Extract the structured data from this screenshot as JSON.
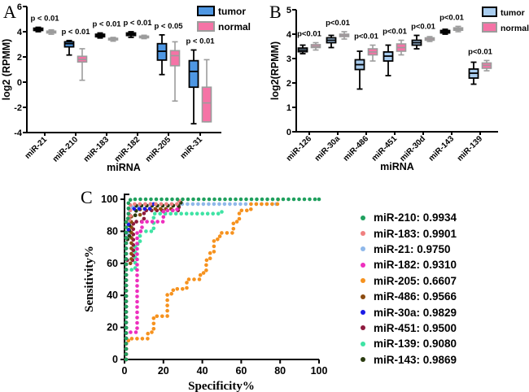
{
  "chart_data": [
    {
      "type": "boxplot",
      "letter": "A",
      "ylabel": "log2 (RPMM)",
      "xlabel": "miRNA",
      "ylim": [
        -4,
        6
      ],
      "yticks": [
        6,
        4,
        2,
        0,
        -2,
        -4
      ],
      "legend": [
        "tumor",
        "normal"
      ],
      "categories": [
        "miR-21",
        "miR-210",
        "miR-183",
        "miR-182",
        "miR-205",
        "miR-31"
      ],
      "pvalues": [
        "p < 0.01",
        "p < 0.01",
        "p < 0.01",
        "p < 0.01",
        "p < 0.05",
        "p < 0.01"
      ],
      "tumor": [
        [
          4.0,
          4.1,
          4.2,
          4.28,
          4.35
        ],
        [
          2.15,
          2.8,
          3.05,
          3.2,
          3.3
        ],
        [
          3.5,
          3.6,
          3.7,
          3.8,
          3.9
        ],
        [
          3.55,
          3.7,
          3.8,
          3.9,
          4.0
        ],
        [
          0.6,
          1.75,
          2.45,
          3.05,
          3.75
        ],
        [
          -3.3,
          -0.4,
          0.85,
          1.7,
          2.55
        ]
      ],
      "normal": [
        [
          3.8,
          3.9,
          3.97,
          4.05,
          4.15
        ],
        [
          0.15,
          1.6,
          1.8,
          2.05,
          2.65
        ],
        [
          3.25,
          3.35,
          3.4,
          3.48,
          3.55
        ],
        [
          3.45,
          3.52,
          3.58,
          3.65,
          3.72
        ],
        [
          -1.5,
          1.3,
          2.1,
          2.5,
          3.2
        ],
        [
          -3.15,
          -3.15,
          -1.65,
          -0.4,
          1.78
        ]
      ]
    },
    {
      "type": "boxplot",
      "letter": "B",
      "ylabel": "log2(RPMM)",
      "xlabel": "miRNA",
      "ylim": [
        0,
        5
      ],
      "yticks": [
        5,
        4,
        3,
        2,
        1,
        0
      ],
      "legend": [
        "tumor",
        "normal"
      ],
      "categories": [
        "miR-126",
        "miR-30a",
        "miR-486",
        "miR-451",
        "miR-30d",
        "miR-143",
        "miR-139"
      ],
      "pvalues": [
        "p<0.01",
        "p<0.01",
        "p<0.01",
        "p<0.01",
        "p<0.01",
        "p<0.01",
        "p<0.01"
      ],
      "tumor": [
        [
          3.2,
          3.28,
          3.35,
          3.43,
          3.55
        ],
        [
          3.45,
          3.65,
          3.75,
          3.85,
          3.95
        ],
        [
          1.75,
          2.55,
          2.75,
          2.95,
          3.3
        ],
        [
          2.3,
          2.9,
          3.1,
          3.27,
          3.55
        ],
        [
          3.4,
          3.55,
          3.65,
          3.75,
          3.95
        ],
        [
          4.0,
          4.05,
          4.1,
          4.15,
          4.2
        ],
        [
          1.95,
          2.2,
          2.4,
          2.57,
          2.85
        ]
      ],
      "normal": [
        [
          3.35,
          3.45,
          3.5,
          3.57,
          3.65
        ],
        [
          3.8,
          3.9,
          3.95,
          4.0,
          4.1
        ],
        [
          2.9,
          3.15,
          3.27,
          3.4,
          3.55
        ],
        [
          3.15,
          3.3,
          3.45,
          3.6,
          3.75
        ],
        [
          3.7,
          3.75,
          3.8,
          3.85,
          3.9
        ],
        [
          4.1,
          4.16,
          4.21,
          4.26,
          4.32
        ],
        [
          2.5,
          2.6,
          2.72,
          2.82,
          2.92
        ]
      ]
    },
    {
      "type": "scatter",
      "letter": "C",
      "xlabel": "Specificity%",
      "ylabel": "Sensitivity%",
      "xlim": [
        0,
        100
      ],
      "ylim": [
        0,
        100
      ],
      "xticks": [
        0,
        20,
        40,
        60,
        80,
        100
      ],
      "yticks": [
        0,
        20,
        40,
        60,
        80,
        100
      ],
      "series": [
        {
          "name": "miR-210",
          "auc": "0.9934",
          "color": "#1FA05E",
          "knots": [
            [
              0,
              0
            ],
            [
              0,
              88
            ],
            [
              2,
              88
            ],
            [
              2,
              98
            ],
            [
              3,
              98
            ],
            [
              3,
              100
            ],
            [
              100,
              100
            ]
          ]
        },
        {
          "name": "miR-183",
          "auc": "0.9901",
          "color": "#F08080",
          "knots": [
            [
              0,
              0
            ],
            [
              0,
              87
            ],
            [
              3,
              87
            ],
            [
              3,
              97
            ],
            [
              28,
              97
            ],
            [
              28,
              100
            ]
          ]
        },
        {
          "name": "miR-21",
          "auc": "0.9750",
          "color": "#8FB8EA",
          "knots": [
            [
              0,
              0
            ],
            [
              0,
              78
            ],
            [
              2,
              78
            ],
            [
              2,
              95
            ],
            [
              8,
              95
            ],
            [
              8,
              97
            ],
            [
              78,
              97
            ]
          ]
        },
        {
          "name": "miR-182",
          "auc": "0.9310",
          "color": "#EE2FBE",
          "knots": [
            [
              0,
              0
            ],
            [
              0,
              17
            ],
            [
              6.5,
              17
            ],
            [
              6.5,
              80
            ],
            [
              9,
              80
            ],
            [
              9,
              86
            ],
            [
              20,
              86
            ],
            [
              20,
              93
            ],
            [
              27,
              93
            ],
            [
              27,
              95
            ]
          ]
        },
        {
          "name": "miR-205",
          "auc": "0.6607",
          "color": "#F6921E",
          "knots": [
            [
              0,
              0
            ],
            [
              0,
              11
            ],
            [
              2,
              11
            ],
            [
              2,
              13
            ],
            [
              12,
              13
            ],
            [
              12,
              17
            ],
            [
              15,
              17
            ],
            [
              15,
              27
            ],
            [
              22,
              27
            ],
            [
              22,
              41
            ],
            [
              25,
              41
            ],
            [
              25,
              44
            ],
            [
              32,
              44
            ],
            [
              32,
              50
            ],
            [
              39,
              50
            ],
            [
              39,
              54
            ],
            [
              42,
              54
            ],
            [
              42,
              62
            ],
            [
              44,
              62
            ],
            [
              44,
              67
            ],
            [
              46,
              67
            ],
            [
              46,
              75
            ],
            [
              49,
              75
            ],
            [
              49,
              79
            ],
            [
              56,
              79
            ],
            [
              56,
              86
            ],
            [
              59,
              86
            ],
            [
              59,
              93
            ],
            [
              65,
              93
            ],
            [
              65,
              97
            ],
            [
              79,
              97
            ],
            [
              79,
              100
            ]
          ]
        },
        {
          "name": "miR-486",
          "auc": "0.9566",
          "color": "#8C4B10",
          "knots": [
            [
              0,
              0
            ],
            [
              0,
              60
            ],
            [
              3.5,
              60
            ],
            [
              3.5,
              90
            ],
            [
              8,
              90
            ],
            [
              8,
              94
            ],
            [
              25,
              94
            ],
            [
              25,
              97
            ]
          ]
        },
        {
          "name": "miR-30a",
          "auc": "0.9829",
          "color": "#1A1AE6",
          "knots": [
            [
              0,
              0
            ],
            [
              0,
              80
            ],
            [
              2,
              80
            ],
            [
              2,
              94
            ],
            [
              13,
              94
            ],
            [
              13,
              97
            ],
            [
              15,
              97
            ]
          ]
        },
        {
          "name": "miR-451",
          "auc": "0.9500",
          "color": "#8E1A3E",
          "knots": [
            [
              0,
              0
            ],
            [
              0,
              62
            ],
            [
              4.5,
              62
            ],
            [
              4.5,
              86
            ],
            [
              10,
              86
            ],
            [
              10,
              93
            ],
            [
              28,
              93
            ],
            [
              28,
              95
            ]
          ]
        },
        {
          "name": "miR-139",
          "auc": "0.9080",
          "color": "#3FE3A4",
          "knots": [
            [
              0,
              0
            ],
            [
              0,
              56
            ],
            [
              5.5,
              56
            ],
            [
              5.5,
              72
            ],
            [
              8,
              72
            ],
            [
              8,
              80
            ],
            [
              15,
              80
            ],
            [
              15,
              91
            ],
            [
              50,
              91
            ],
            [
              50,
              93
            ]
          ]
        },
        {
          "name": "miR-143",
          "auc": "0.9869",
          "color": "#2A3B10",
          "knots": [
            [
              0,
              0
            ],
            [
              0,
              75
            ],
            [
              2.5,
              75
            ],
            [
              2.5,
              90
            ],
            [
              6,
              90
            ],
            [
              6,
              96
            ],
            [
              29,
              96
            ],
            [
              29,
              98
            ]
          ]
        }
      ],
      "draw_order": [
        2,
        8,
        7,
        5,
        9,
        6,
        1,
        3,
        4,
        0
      ],
      "legend_separator": ": "
    }
  ],
  "colors": {
    "tumor_fill_a": "#4E97E3",
    "tumor_fill_b": "#A9CDEF",
    "tumor_border": "#000000",
    "normal_fill": "#F573A6",
    "normal_border": "#9C9C9C",
    "axis": "#000000"
  }
}
